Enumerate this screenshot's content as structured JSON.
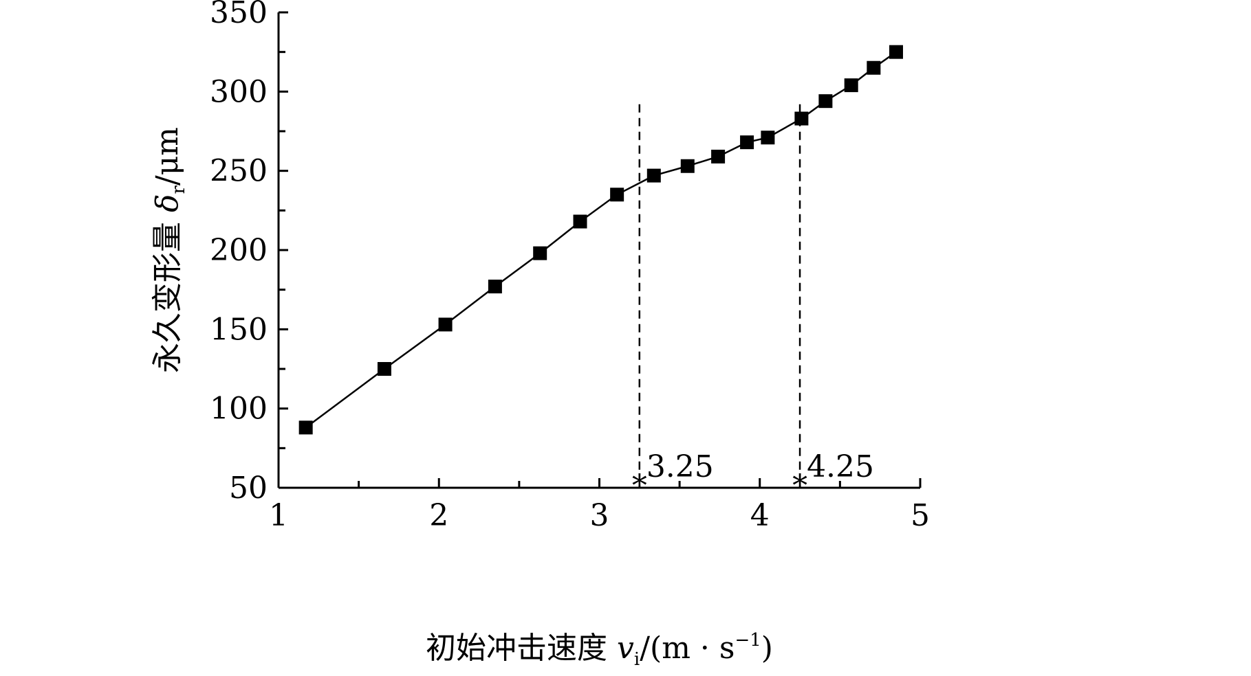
{
  "chart_data": {
    "type": "line",
    "title": "",
    "xlabel": "初始冲击速度 v_i /(m · s⁻¹)",
    "ylabel": "永久变形量 δ_r /μm",
    "xlabel_parts": {
      "text": "初始冲击速度 ",
      "sym": "v",
      "sub": "i",
      "unit_a": "/(m · s",
      "sup": "−1",
      "unit_b": ")"
    },
    "ylabel_parts": {
      "text": "永久变形量 ",
      "sym": "δ",
      "sub": "r",
      "unit": "/μm"
    },
    "xlim": [
      1,
      5
    ],
    "ylim": [
      50,
      350
    ],
    "x_ticks": [
      1,
      2,
      3,
      4,
      5
    ],
    "x_tick_labels": [
      "1",
      "2",
      "3",
      "4",
      "5"
    ],
    "y_ticks": [
      50,
      100,
      150,
      200,
      250,
      300,
      350
    ],
    "y_tick_labels": [
      "50",
      "100",
      "150",
      "200",
      "250",
      "300",
      "350"
    ],
    "grid": false,
    "series": [
      {
        "marker": "square",
        "color": "#000000",
        "x": [
          1.17,
          1.66,
          2.04,
          2.35,
          2.63,
          2.88,
          3.11,
          3.34,
          3.55,
          3.74,
          3.92,
          4.05,
          4.26,
          4.41,
          4.57,
          4.71,
          4.85
        ],
        "y": [
          88,
          125,
          153,
          177,
          198,
          218,
          235,
          247,
          253,
          259,
          268,
          271,
          283,
          294,
          304,
          315,
          325
        ]
      }
    ],
    "reference_lines": [
      {
        "x": 3.25,
        "label": "3.25",
        "y_top": 292
      },
      {
        "x": 4.25,
        "label": "4.25",
        "y_top": 292
      }
    ]
  }
}
